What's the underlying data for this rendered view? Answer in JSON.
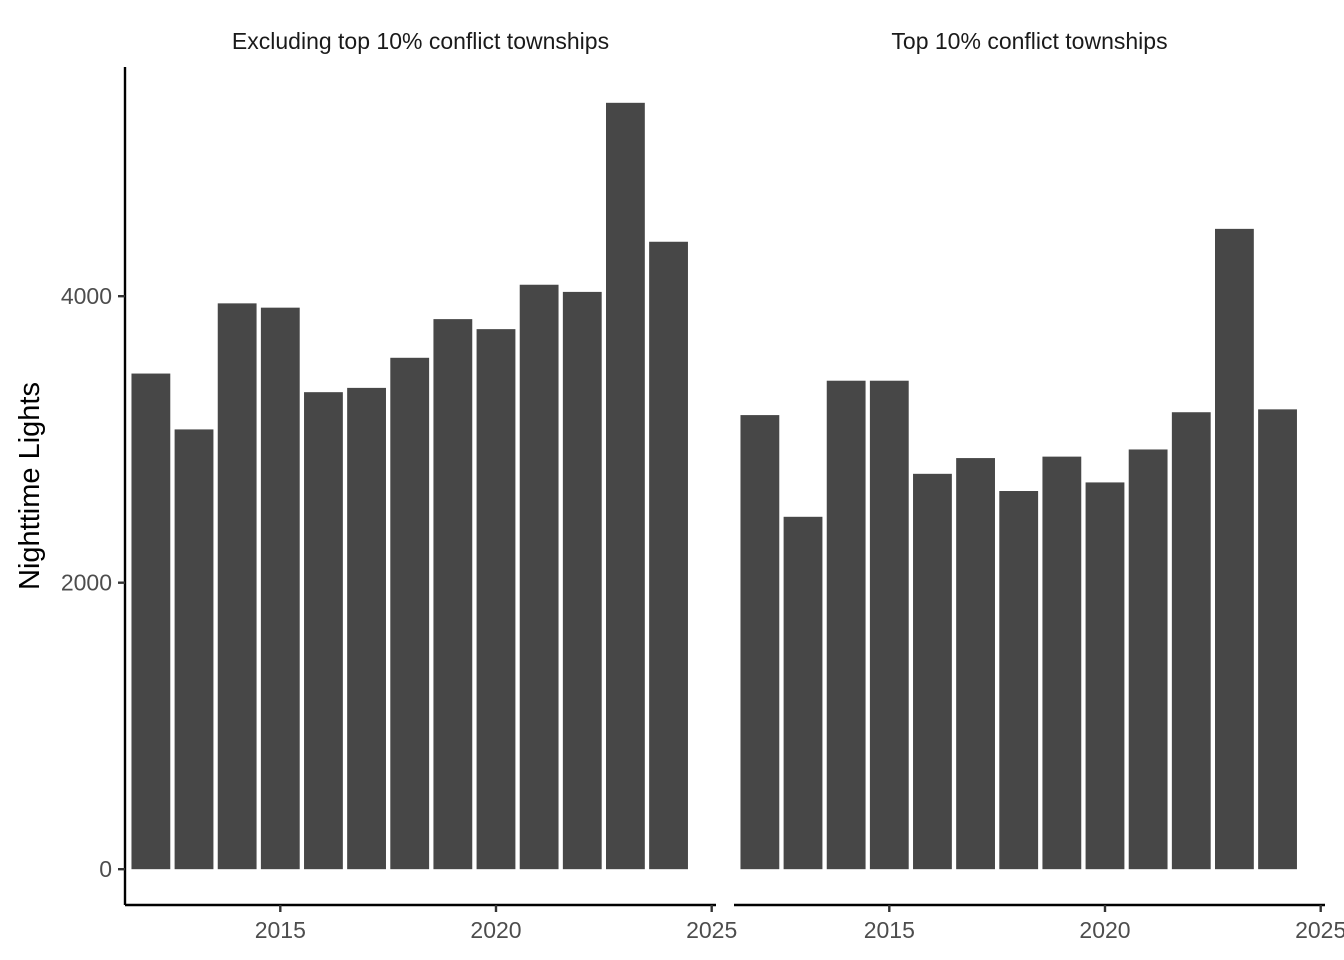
{
  "chart_data": {
    "type": "bar",
    "ylabel": "Nighttime Lights",
    "xlabel": "",
    "ylim": [
      -250,
      5600
    ],
    "yticks": [
      0,
      2000,
      4000
    ],
    "xlim": [
      2011.4,
      2025.1
    ],
    "xticks": [
      2015,
      2020,
      2025
    ],
    "xtick_labels": [
      "2015",
      "2020",
      "2025"
    ],
    "ytick_labels": [
      "0",
      "2000",
      "4000"
    ],
    "bar_width": 0.9,
    "bar_color": "#474747",
    "grid": false,
    "legend": "none",
    "panels": [
      {
        "title": "Excluding top 10% conflict townships",
        "x": [
          2012,
          2013,
          2014,
          2015,
          2016,
          2017,
          2018,
          2019,
          2020,
          2021,
          2022,
          2023,
          2024
        ],
        "values": [
          3460,
          3070,
          3950,
          3920,
          3330,
          3360,
          3570,
          3840,
          3770,
          4080,
          4030,
          5350,
          4380
        ]
      },
      {
        "title": "Top 10% conflict townships",
        "x": [
          2012,
          2013,
          2014,
          2015,
          2016,
          2017,
          2018,
          2019,
          2020,
          2021,
          2022,
          2023,
          2024
        ],
        "values": [
          3170,
          2460,
          3410,
          3410,
          2760,
          2870,
          2640,
          2880,
          2700,
          2930,
          3190,
          4470,
          3210
        ]
      }
    ]
  }
}
